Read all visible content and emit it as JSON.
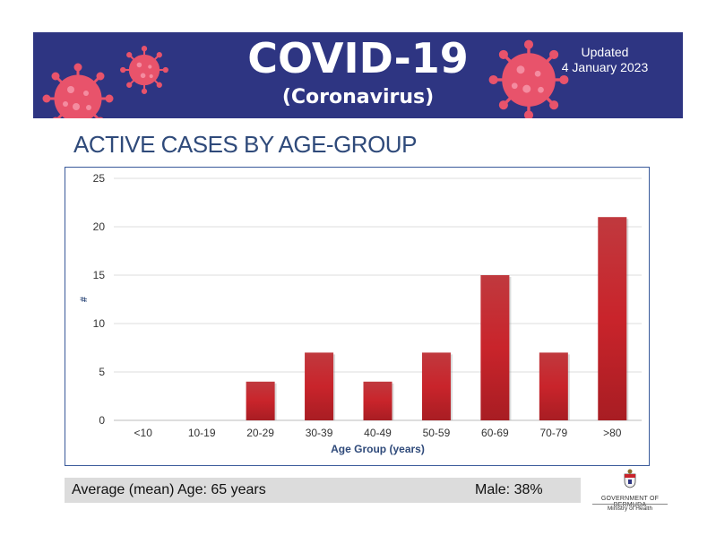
{
  "banner": {
    "title": "COVID-19",
    "subtitle": "(Coronavirus)",
    "updated_line1": "Updated",
    "updated_line2": "4 January 2023",
    "background_color": "#2e3582",
    "virus_color": "#e8536b"
  },
  "section_title": "ACTIVE CASES BY AGE-GROUP",
  "chart_data": {
    "type": "bar",
    "categories": [
      "<10",
      "10-19",
      "20-29",
      "30-39",
      "40-49",
      "50-59",
      "60-69",
      "70-79",
      ">80"
    ],
    "values": [
      0,
      0,
      4,
      7,
      4,
      7,
      15,
      7,
      21
    ],
    "xlabel": "Age Group (years)",
    "ylabel": "#",
    "ylim": [
      0,
      25
    ],
    "yticks": [
      0,
      5,
      10,
      15,
      20,
      25
    ],
    "grid": true,
    "bar_color": "#c9242b"
  },
  "info": {
    "average_age": "Average (mean) Age: 65 years",
    "male": "Male: 38%"
  },
  "footer": {
    "gov_name": "GOVERNMENT OF BERMUDA",
    "ministry": "Ministry of Health"
  }
}
